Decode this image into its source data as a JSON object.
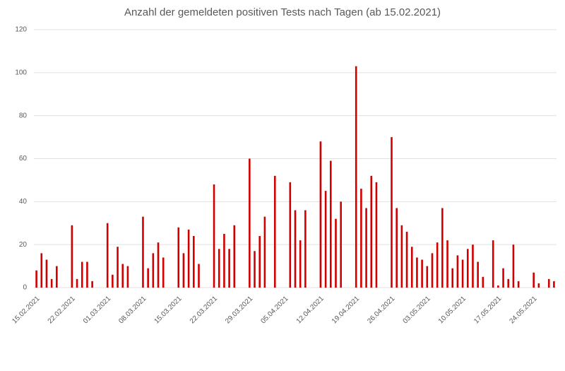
{
  "chart_data": {
    "type": "bar",
    "title": "Anzahl der gemeldeten positiven Tests nach Tagen (ab 15.02.2021)",
    "categories": [
      "15.02.2021",
      null,
      null,
      null,
      null,
      null,
      null,
      "22.02.2021",
      null,
      null,
      null,
      null,
      null,
      null,
      "01.03.2021",
      null,
      null,
      null,
      null,
      null,
      null,
      "08.03.2021",
      null,
      null,
      null,
      null,
      null,
      null,
      "15.03.2021",
      null,
      null,
      null,
      null,
      null,
      null,
      "22.03.2021",
      null,
      null,
      null,
      null,
      null,
      null,
      "29.03.2021",
      null,
      null,
      null,
      null,
      null,
      null,
      "05.04.2021",
      null,
      null,
      null,
      null,
      null,
      null,
      "12.04.2021",
      null,
      null,
      null,
      null,
      null,
      null,
      "19.04.2021",
      null,
      null,
      null,
      null,
      null,
      null,
      "26.04.2021",
      null,
      null,
      null,
      null,
      null,
      null,
      "03.05.2021",
      null,
      null,
      null,
      null,
      null,
      null,
      "10.05.2021",
      null,
      null,
      null,
      null,
      null,
      null,
      "17.05.2021",
      null,
      null,
      null,
      null,
      null,
      null,
      "24.05.2021",
      null,
      null,
      null,
      null
    ],
    "values": [
      8,
      16,
      13,
      4,
      10,
      0,
      0,
      29,
      4,
      12,
      12,
      3,
      0,
      0,
      30,
      6,
      19,
      11,
      10,
      0,
      0,
      33,
      9,
      16,
      21,
      14,
      0,
      0,
      28,
      16,
      27,
      24,
      11,
      0,
      0,
      48,
      18,
      25,
      18,
      29,
      0,
      0,
      60,
      17,
      24,
      33,
      0,
      52,
      0,
      0,
      49,
      36,
      22,
      36,
      0,
      0,
      68,
      45,
      59,
      32,
      40,
      0,
      0,
      103,
      46,
      37,
      52,
      49,
      0,
      0,
      70,
      37,
      29,
      26,
      19,
      14,
      13,
      10,
      16,
      21,
      37,
      22,
      9,
      15,
      13,
      18,
      20,
      12,
      5,
      0,
      22,
      1,
      9,
      4,
      20,
      3,
      0,
      0,
      7,
      2,
      0,
      4,
      3
    ],
    "color": "#d00000",
    "ylim": [
      0,
      120
    ],
    "yticks": [
      0,
      20,
      40,
      60,
      80,
      100,
      120
    ],
    "grid": true
  }
}
